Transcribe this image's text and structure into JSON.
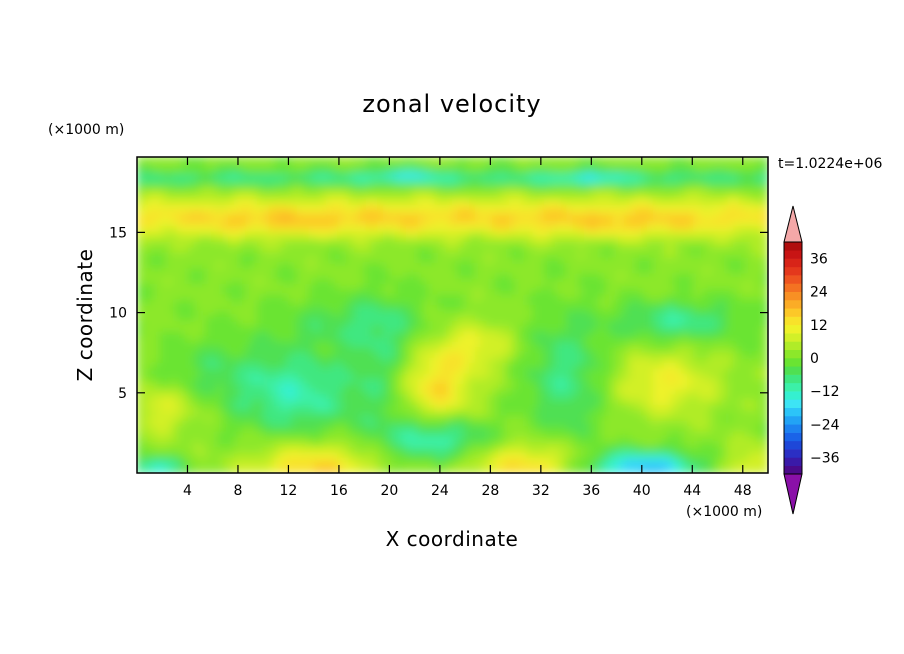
{
  "chart_data": {
    "type": "heatmap",
    "title": "zonal velocity",
    "xlabel": "X coordinate",
    "ylabel": "Z coordinate",
    "x_unit": "(×1000 m)",
    "y_unit": "(×1000 m)",
    "time_label": "t=1.0224e+06",
    "xlim": [
      0,
      50
    ],
    "ylim": [
      0,
      19.7
    ],
    "x_ticks": [
      4,
      8,
      12,
      16,
      20,
      24,
      28,
      32,
      36,
      40,
      44,
      48
    ],
    "y_ticks": [
      5,
      10,
      15
    ],
    "colorbar": {
      "levels": [
        -42,
        -39,
        -36,
        -33,
        -30,
        -27,
        -24,
        -21,
        -18,
        -15,
        -12,
        -9,
        -6,
        -3,
        0,
        3,
        6,
        9,
        12,
        15,
        18,
        21,
        24,
        27,
        30,
        33,
        36,
        39,
        42
      ],
      "labels": [
        36,
        24,
        12,
        0,
        -12,
        -24,
        -36
      ],
      "extend": "both",
      "colors": [
        "#4b0a8a",
        "#3a1aa8",
        "#2b2fc4",
        "#1e47d8",
        "#1a63e8",
        "#1d82f0",
        "#22a3f5",
        "#2cc4f8",
        "#3de4f5",
        "#35f0d0",
        "#3cf0a8",
        "#3fe780",
        "#4fe052",
        "#6ae432",
        "#8ce82a",
        "#b0ec28",
        "#d2f028",
        "#eef22a",
        "#f8e22a",
        "#fcc828",
        "#fbac26",
        "#f89024",
        "#f47222",
        "#ee5420",
        "#e4381c",
        "#d82418",
        "#c81414",
        "#b00e0e"
      ],
      "over_color": "#f4a8a8",
      "under_color": "#8a10a8"
    },
    "grid": false
  }
}
